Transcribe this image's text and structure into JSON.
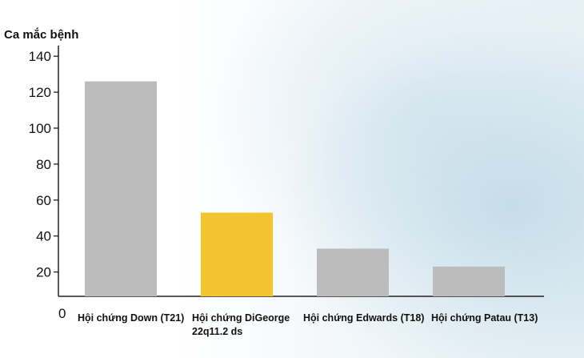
{
  "chart_data": {
    "type": "bar",
    "ylabel": "Ca mắc bệnh",
    "xlabel": "",
    "ylim": [
      0,
      145
    ],
    "yticks": [
      0,
      20,
      40,
      60,
      80,
      100,
      120,
      140
    ],
    "categories": [
      [
        "Hội chứng Down (T21)"
      ],
      [
        "Hội chứng DiGeorge",
        "22q11.2 ds"
      ],
      [
        "Hội chứng Edwards (T18)"
      ],
      [
        "Hội chứng Patau (T13)"
      ]
    ],
    "values": [
      126,
      53,
      33,
      23
    ],
    "colors": [
      "#bcbcbc",
      "#f2c42f",
      "#bcbcbc",
      "#bcbcbc"
    ]
  }
}
